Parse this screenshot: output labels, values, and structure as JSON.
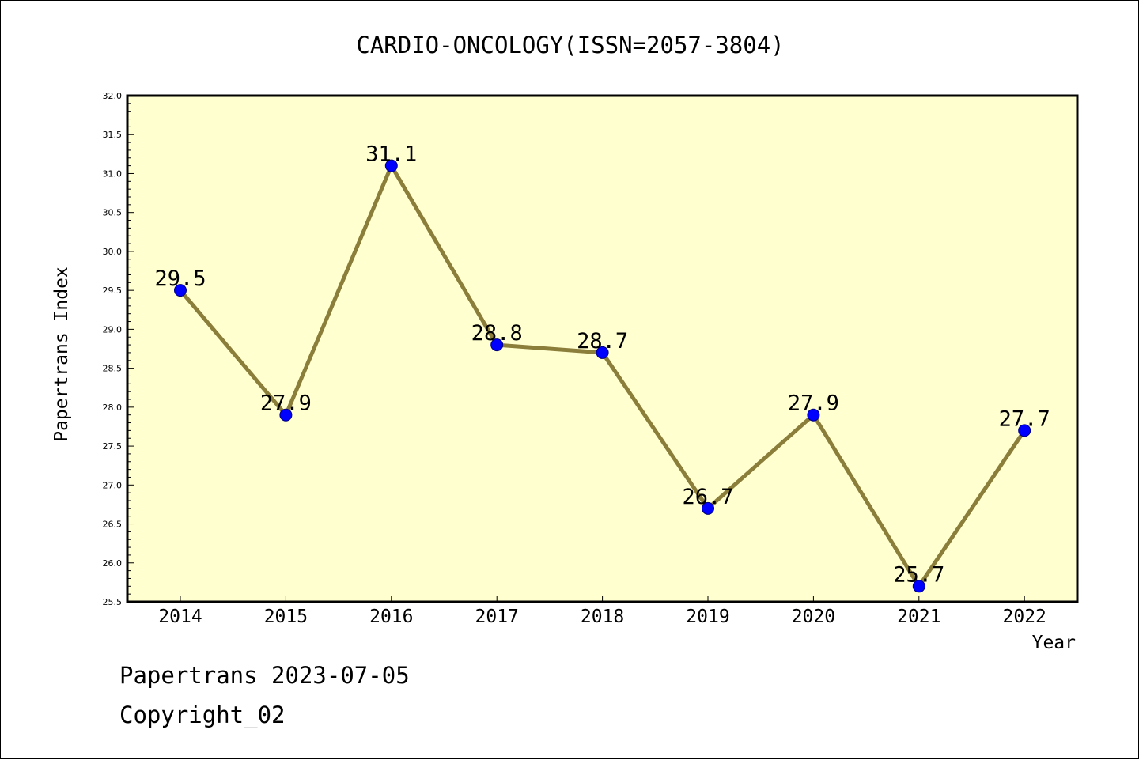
{
  "chart_data": {
    "type": "line",
    "title": "CARDIO-ONCOLOGY(ISSN=2057-3804)",
    "xlabel": "Year",
    "ylabel": "Papertrans Index",
    "categories": [
      "2014",
      "2015",
      "2016",
      "2017",
      "2018",
      "2019",
      "2020",
      "2021",
      "2022"
    ],
    "series": [
      {
        "values": [
          29.5,
          27.9,
          31.1,
          28.8,
          28.7,
          26.7,
          27.9,
          25.7,
          27.7
        ],
        "labels": [
          "29.5",
          "27.9",
          "31.1",
          "28.8",
          "28.7",
          "26.7",
          "27.9",
          "25.7",
          "27.7"
        ]
      }
    ],
    "ylim": [
      25.5,
      32.0
    ],
    "yticks": [
      "25.5",
      "26.0",
      "26.5",
      "27.0",
      "27.5",
      "28.0",
      "28.5",
      "29.0",
      "29.5",
      "30.0",
      "30.5",
      "31.0",
      "31.5",
      "32.0"
    ],
    "grid": false,
    "legend": "none",
    "colors": {
      "plot_background": "#FFFFD0",
      "line": "#8B7D3A",
      "marker": "#0000FF",
      "marker_edge": "#000080"
    }
  },
  "footer": {
    "line1": "Papertrans 2023-07-05",
    "line2": "Copyright_02"
  }
}
